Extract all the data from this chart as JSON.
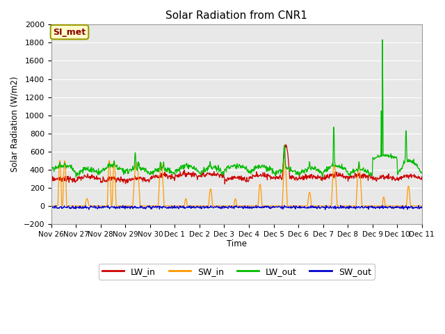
{
  "title": "Solar Radiation from CNR1",
  "ylabel": "Solar Radiation (W/m2)",
  "xlabel": "Time",
  "station_label": "SI_met",
  "ylim": [
    -200,
    2000
  ],
  "yticks": [
    -200,
    0,
    200,
    400,
    600,
    800,
    1000,
    1200,
    1400,
    1600,
    1800,
    2000
  ],
  "colors": {
    "LW_in": "#cc0000",
    "SW_in": "#ff9900",
    "LW_out": "#00bb00",
    "SW_out": "#0000cc"
  },
  "plot_bg": "#e8e8e8",
  "xtick_labels": [
    "Nov 26",
    "Nov 27",
    "Nov 28",
    "Nov 29",
    "Nov 30",
    "Dec 1",
    "Dec 2",
    "Dec 3",
    "Dec 4",
    "Dec 5",
    "Dec 6",
    "Dec 7",
    "Dec 8",
    "Dec 9",
    "Dec 10",
    "Dec 11"
  ],
  "n_points": 960,
  "days": 15
}
